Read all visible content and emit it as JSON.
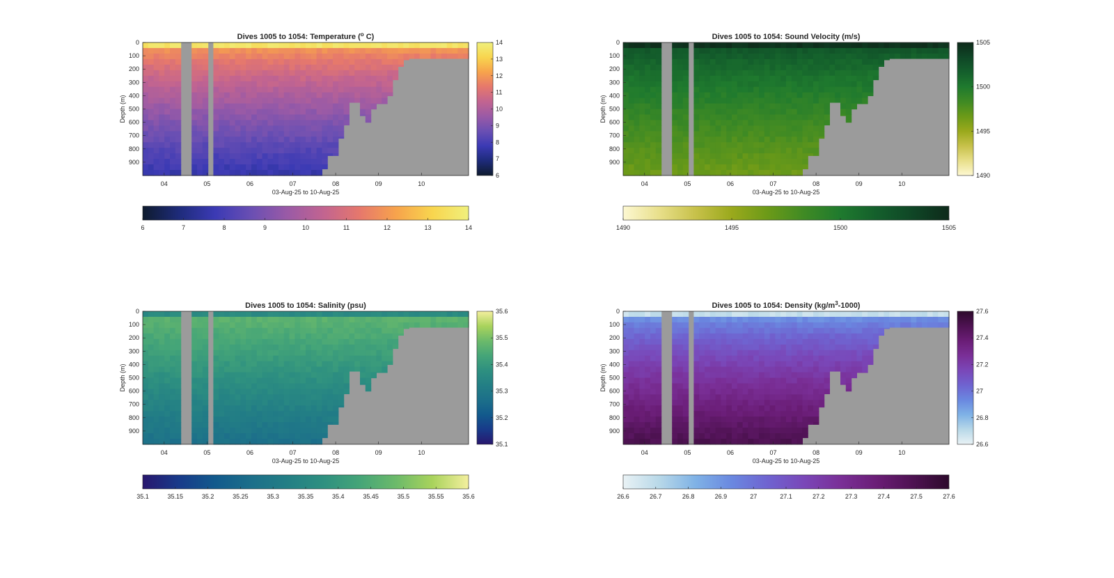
{
  "figure": {
    "background": "#ffffff",
    "mask_color": "#9b9b9b"
  },
  "chart_data": [
    {
      "type": "heatmap",
      "title_main": "Dives 1005 to 1054: Temperature (",
      "title_sup": "o",
      "title_end": " C)",
      "xlabel": "03-Aug-25 to 10-Aug-25",
      "ylabel": "Depth (m)",
      "x_ticks": [
        "04",
        "05",
        "06",
        "07",
        "08",
        "09",
        "10"
      ],
      "x_range_days": [
        3.5,
        11.1
      ],
      "y_ticks": [
        0,
        100,
        200,
        300,
        400,
        500,
        600,
        700,
        800,
        900
      ],
      "y_range": [
        0,
        1000
      ],
      "variable": "temperature",
      "units": "°C",
      "colorbar_range": [
        6,
        14
      ],
      "colorbar_ticks": [
        6,
        7,
        8,
        9,
        10,
        11,
        12,
        13,
        14
      ],
      "h_colorbar_ticks": [
        6,
        7,
        8,
        9,
        10,
        11,
        12,
        13,
        14
      ],
      "colormap": [
        "#0e1b2e",
        "#1e2b7a",
        "#3b3ab4",
        "#6a4fb3",
        "#9a5aa6",
        "#c26490",
        "#e6786c",
        "#f7a34c",
        "#f8d54e",
        "#f0f07c"
      ],
      "surface_value": 13.6,
      "mixed_layer_depth": 40,
      "deep_value": 7.6
    },
    {
      "type": "heatmap",
      "title_main": "Dives 1005 to 1054: Sound Velocity (m/s)",
      "title_sup": "",
      "title_end": "",
      "xlabel": "03-Aug-25 to 10-Aug-25",
      "ylabel": "Depth (m)",
      "x_ticks": [
        "04",
        "05",
        "06",
        "07",
        "08",
        "09",
        "10"
      ],
      "x_range_days": [
        3.5,
        11.1
      ],
      "y_ticks": [
        0,
        100,
        200,
        300,
        400,
        500,
        600,
        700,
        800,
        900
      ],
      "y_range": [
        0,
        1000
      ],
      "variable": "sound_velocity",
      "units": "m/s",
      "colorbar_range": [
        1490,
        1505
      ],
      "colorbar_ticks": [
        1490,
        1495,
        1500,
        1505
      ],
      "h_colorbar_ticks": [
        1490,
        1495,
        1500,
        1505
      ],
      "colormap": [
        "#fdf8d2",
        "#e8df8a",
        "#c7c14a",
        "#9aa91c",
        "#6b9a18",
        "#3f8a24",
        "#1f7a2e",
        "#145f2c",
        "#0f4626",
        "#0e2a1a"
      ],
      "surface_value": 1504.5,
      "mixed_layer_depth": 40,
      "deep_value": 1496.5
    },
    {
      "type": "heatmap",
      "title_main": "Dives 1005 to 1054: Salinity (psu)",
      "title_sup": "",
      "title_end": "",
      "xlabel": "03-Aug-25 to 10-Aug-25",
      "ylabel": "Depth (m)",
      "x_ticks": [
        "04",
        "05",
        "06",
        "07",
        "08",
        "09",
        "10"
      ],
      "x_range_days": [
        3.5,
        11.1
      ],
      "y_ticks": [
        0,
        100,
        200,
        300,
        400,
        500,
        600,
        700,
        800,
        900
      ],
      "y_range": [
        0,
        1000
      ],
      "variable": "salinity",
      "units": "psu",
      "colorbar_range": [
        35.1,
        35.6
      ],
      "colorbar_ticks": [
        35.1,
        35.2,
        35.3,
        35.4,
        35.5,
        35.6
      ],
      "h_colorbar_ticks": [
        35.1,
        35.15,
        35.2,
        35.25,
        35.3,
        35.35,
        35.4,
        35.45,
        35.5,
        35.55,
        35.6
      ],
      "colormap": [
        "#28176e",
        "#183a8a",
        "#125a8c",
        "#1c6f8a",
        "#237f85",
        "#2e9080",
        "#45a578",
        "#6cba6a",
        "#a9d35c",
        "#f4ef9e"
      ],
      "surface_value": 35.36,
      "mixed_layer_depth": 40,
      "deep_value": 35.27
    },
    {
      "type": "heatmap",
      "title_main": "Dives 1005 to 1054: Density (kg/m",
      "title_sup": "3",
      "title_end": "-1000)",
      "xlabel": "03-Aug-25 to 10-Aug-25",
      "ylabel": "Depth (m)",
      "x_ticks": [
        "04",
        "05",
        "06",
        "07",
        "08",
        "09",
        "10"
      ],
      "x_range_days": [
        3.5,
        11.1
      ],
      "y_ticks": [
        0,
        100,
        200,
        300,
        400,
        500,
        600,
        700,
        800,
        900
      ],
      "y_range": [
        0,
        1000
      ],
      "variable": "density",
      "units": "kg/m3-1000",
      "colorbar_range": [
        26.6,
        27.6
      ],
      "colorbar_ticks": [
        26.6,
        26.8,
        27,
        27.2,
        27.4,
        27.6
      ],
      "h_colorbar_ticks": [
        26.6,
        26.7,
        26.8,
        26.9,
        27,
        27.1,
        27.2,
        27.3,
        27.4,
        27.5,
        27.6
      ],
      "colormap": [
        "#e9f2f5",
        "#b8d8e8",
        "#7fb2e6",
        "#6a88e0",
        "#6f63d0",
        "#7a47b8",
        "#7a2f97",
        "#6a1d76",
        "#4e1252",
        "#2d0a2c"
      ],
      "surface_value": 26.68,
      "mixed_layer_depth": 40,
      "deep_value": 27.5
    }
  ],
  "shared_layout": {
    "gaps_days": [
      [
        4.45,
        4.6
      ],
      [
        5.05,
        5.2
      ]
    ],
    "seafloor_days": [
      7.5,
      7.65,
      7.75,
      7.85,
      8.0,
      8.2,
      8.35,
      8.55,
      8.7,
      8.85,
      9.0,
      9.15,
      9.3,
      9.45,
      9.6,
      9.75,
      11.1
    ],
    "seafloor_depths": [
      1000,
      950,
      900,
      850,
      720,
      620,
      450,
      550,
      600,
      500,
      460,
      400,
      280,
      180,
      130,
      120,
      120
    ]
  }
}
